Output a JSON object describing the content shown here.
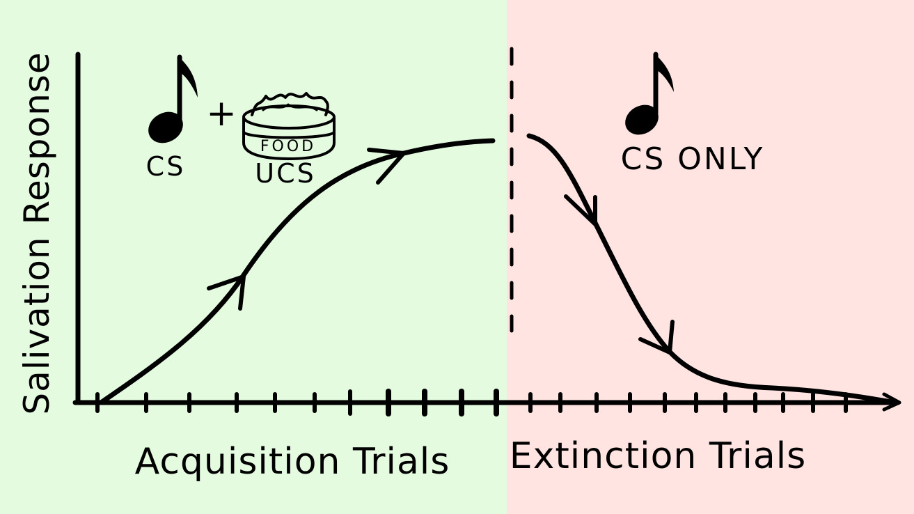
{
  "colors": {
    "acquisition_bg": "#e4fbe0",
    "extinction_bg": "#ffe4e1",
    "ink": "#000000"
  },
  "y_axis_label": "Salivation Response",
  "acquisition": {
    "x_label": "Acquisition Trials",
    "cs_label": "CS",
    "plus": "+",
    "bowl_text": "FOOD",
    "ucs_label": "UCS",
    "cs_icon": "music-note-icon",
    "ucs_icon": "food-bowl-icon"
  },
  "extinction": {
    "x_label": "Extinction Trials",
    "cs_label": "CS ONLY",
    "cs_icon": "music-note-icon"
  },
  "chart_data": {
    "type": "line",
    "series": [
      {
        "values": [
          0,
          0.3,
          0.6,
          0.85,
          0.95,
          1.0
        ]
      },
      {
        "values": [
          1.0,
          0.8,
          0.45,
          0.2,
          0.08,
          0.02
        ]
      }
    ]
  }
}
